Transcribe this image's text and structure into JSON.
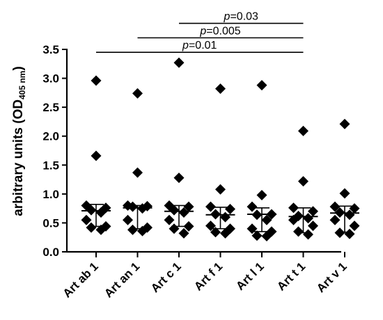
{
  "chart_data": {
    "type": "scatter",
    "title": "",
    "xlabel": "",
    "ylabel": {
      "main": "arbitrary units (OD",
      "sub": "405 nm",
      "close": ")"
    },
    "ylim": [
      0,
      3.5
    ],
    "yticks": [
      "0.0",
      "0.5",
      "1.0",
      "1.5",
      "2.0",
      "2.5",
      "3.0",
      "3.5"
    ],
    "grid": false,
    "categories": [
      "Art ab 1",
      "Art an 1",
      "Art c 1",
      "Art f 1",
      "Art l 1",
      "Art t 1",
      "Art v 1"
    ],
    "series": [
      {
        "category": "Art ab 1",
        "points": [
          2.96,
          1.66,
          0.8,
          0.76,
          0.72,
          0.68,
          0.55,
          0.44,
          0.42,
          0.38
        ],
        "median": 0.71,
        "q1": 0.44,
        "q3": 0.82
      },
      {
        "category": "Art an 1",
        "points": [
          2.74,
          1.37,
          0.8,
          0.79,
          0.78,
          0.75,
          0.55,
          0.42,
          0.38,
          0.36
        ],
        "median": 0.76,
        "q1": 0.4,
        "q3": 0.8
      },
      {
        "category": "Art c 1",
        "points": [
          3.27,
          1.28,
          0.8,
          0.78,
          0.72,
          0.68,
          0.55,
          0.44,
          0.4,
          0.32
        ],
        "median": 0.7,
        "q1": 0.44,
        "q3": 0.8
      },
      {
        "category": "Art f 1",
        "points": [
          2.82,
          1.08,
          0.78,
          0.74,
          0.65,
          0.6,
          0.45,
          0.4,
          0.34,
          0.32
        ],
        "median": 0.64,
        "q1": 0.4,
        "q3": 0.77
      },
      {
        "category": "Art l 1",
        "points": [
          2.88,
          0.98,
          0.78,
          0.65,
          0.64,
          0.55,
          0.4,
          0.35,
          0.28,
          0.27
        ],
        "median": 0.65,
        "q1": 0.35,
        "q3": 0.76
      },
      {
        "category": "Art t 1",
        "points": [
          2.09,
          1.22,
          0.76,
          0.7,
          0.62,
          0.58,
          0.55,
          0.45,
          0.35,
          0.3
        ],
        "median": 0.61,
        "q1": 0.33,
        "q3": 0.76
      },
      {
        "category": "Art v 1",
        "points": [
          2.21,
          1.01,
          0.78,
          0.75,
          0.68,
          0.64,
          0.55,
          0.45,
          0.33,
          0.31
        ],
        "median": 0.67,
        "q1": 0.34,
        "q3": 0.79
      }
    ],
    "annotations": [
      {
        "from": "Art c 1",
        "to": "Art t 1",
        "y": 3.95,
        "prefix": "p",
        "value": "=0.03"
      },
      {
        "from": "Art an 1",
        "to": "Art t 1",
        "y": 3.7,
        "prefix": "p",
        "value": "=0.005"
      },
      {
        "from": "Art ab 1",
        "to": "Art t 1",
        "y": 3.45,
        "prefix": "p",
        "value": "=0.01"
      }
    ]
  }
}
